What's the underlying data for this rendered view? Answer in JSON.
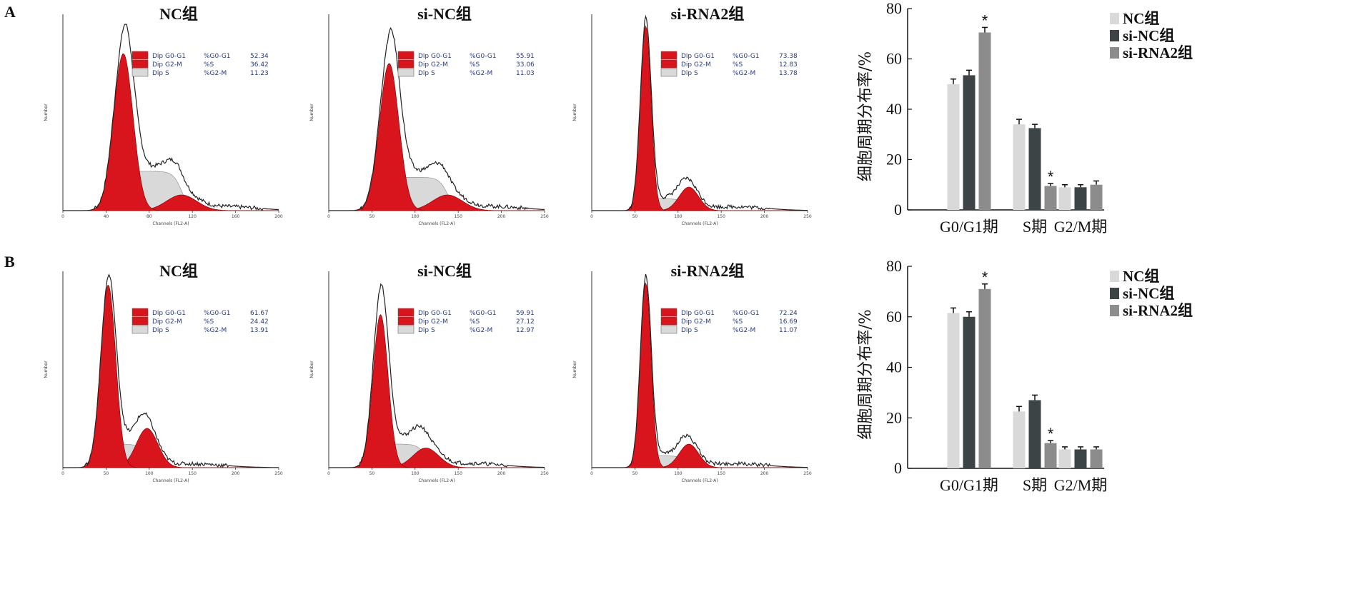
{
  "panel_labels": [
    "A",
    "B"
  ],
  "histograms": [
    {
      "title": "NC组",
      "legend": [
        {
          "label": "Dip G0-G1",
          "stat": "%G0-G1",
          "value": "52.34"
        },
        {
          "label": "Dip G2-M",
          "stat": "%S",
          "value": "36.42"
        },
        {
          "label": "Dip S",
          "stat": "%G2-M",
          "value": "11.23"
        }
      ],
      "ylabel": "Number",
      "xlabel": "Channels (FL2-A)",
      "xticks": [
        "0",
        "40",
        "80",
        "120",
        "160",
        "200"
      ],
      "shape": {
        "g1_pos": 0.28,
        "g1_h": 0.8,
        "g1_w": 0.045,
        "g1_peak_total": 0.95,
        "s_h": 0.2,
        "g2_pos": 0.55,
        "g2_h": 0.08,
        "g2_w": 0.07
      }
    },
    {
      "title": "si-NC组",
      "legend": [
        {
          "label": "Dip G0-G1",
          "stat": "%G0-G1",
          "value": "55.91"
        },
        {
          "label": "Dip G2-M",
          "stat": "%S",
          "value": "33.06"
        },
        {
          "label": "Dip S",
          "stat": "%G2-M",
          "value": "11.03"
        }
      ],
      "ylabel": "Number",
      "xlabel": "Channels (FL2-A)",
      "xticks": [
        "0",
        "50",
        "100",
        "150",
        "200",
        "250"
      ],
      "shape": {
        "g1_pos": 0.28,
        "g1_h": 0.75,
        "g1_w": 0.045,
        "g1_peak_total": 0.92,
        "s_h": 0.17,
        "g2_pos": 0.55,
        "g2_h": 0.08,
        "g2_w": 0.07
      }
    },
    {
      "title": "si-RNA2组",
      "legend": [
        {
          "label": "Dip G0-G1",
          "stat": "%G0-G1",
          "value": "73.38"
        },
        {
          "label": "Dip G2-M",
          "stat": "%S",
          "value": "12.83"
        },
        {
          "label": "Dip S",
          "stat": "%G2-M",
          "value": "13.78"
        }
      ],
      "ylabel": "Number",
      "xlabel": "Channels (FL2-A)",
      "xticks": [
        "0",
        "50",
        "100",
        "150",
        "200",
        "250"
      ],
      "shape": {
        "g1_pos": 0.25,
        "g1_h": 0.94,
        "g1_w": 0.025,
        "g1_peak_total": 0.98,
        "s_h": 0.06,
        "g2_pos": 0.45,
        "g2_h": 0.12,
        "g2_w": 0.045
      }
    },
    {
      "title": "NC组",
      "legend": [
        {
          "label": "Dip G0-G1",
          "stat": "%G0-G1",
          "value": "61.67"
        },
        {
          "label": "Dip G2-M",
          "stat": "%S",
          "value": "24.42"
        },
        {
          "label": "Dip S",
          "stat": "%G2-M",
          "value": "13.91"
        }
      ],
      "ylabel": "Number",
      "xlabel": "Channels (FL2-A)",
      "xticks": [
        "0",
        "50",
        "100",
        "150",
        "200",
        "250"
      ],
      "shape": {
        "g1_pos": 0.21,
        "g1_h": 0.93,
        "g1_w": 0.035,
        "g1_peak_total": 0.98,
        "s_h": 0.12,
        "g2_pos": 0.39,
        "g2_h": 0.2,
        "g2_w": 0.05
      }
    },
    {
      "title": "si-NC组",
      "legend": [
        {
          "label": "Dip G0-G1",
          "stat": "%G0-G1",
          "value": "59.91"
        },
        {
          "label": "Dip G2-M",
          "stat": "%S",
          "value": "27.12"
        },
        {
          "label": "Dip S",
          "stat": "%G2-M",
          "value": "12.97"
        }
      ],
      "ylabel": "Number",
      "xlabel": "Channels (FL2-A)",
      "xticks": [
        "0",
        "50",
        "100",
        "150",
        "200",
        "250"
      ],
      "shape": {
        "g1_pos": 0.24,
        "g1_h": 0.78,
        "g1_w": 0.035,
        "g1_peak_total": 0.93,
        "s_h": 0.12,
        "g2_pos": 0.45,
        "g2_h": 0.1,
        "g2_w": 0.06
      }
    },
    {
      "title": "si-RNA2组",
      "legend": [
        {
          "label": "Dip G0-G1",
          "stat": "%G0-G1",
          "value": "72.24"
        },
        {
          "label": "Dip G2-M",
          "stat": "%S",
          "value": "16.69"
        },
        {
          "label": "Dip S",
          "stat": "%G2-M",
          "value": "11.07"
        }
      ],
      "ylabel": "Number",
      "xlabel": "Channels (FL2-A)",
      "xticks": [
        "0",
        "50",
        "100",
        "150",
        "200",
        "250"
      ],
      "shape": {
        "g1_pos": 0.25,
        "g1_h": 0.94,
        "g1_w": 0.025,
        "g1_peak_total": 0.98,
        "s_h": 0.06,
        "g2_pos": 0.45,
        "g2_h": 0.12,
        "g2_w": 0.045
      }
    }
  ],
  "colors": {
    "g1_fill": "#d8141c",
    "g2_fill": "#d8141c",
    "s_fill": "#d9d9d9",
    "outline": "#222222",
    "nc_bar": "#d9d9d9",
    "sinc_bar": "#3d4446",
    "sirna_bar": "#8c8c8c",
    "legend_text": "#2a3a7a"
  },
  "chart_data": [
    {
      "type": "bar",
      "categories": [
        "G0/G1期",
        "S期",
        "G2/M期"
      ],
      "series": [
        {
          "name": "NC组",
          "values": [
            50,
            34,
            9
          ],
          "errors": [
            2,
            2,
            1
          ]
        },
        {
          "name": "si-NC组",
          "values": [
            53.5,
            32.5,
            9
          ],
          "errors": [
            2,
            1.5,
            1
          ]
        },
        {
          "name": "si-RNA2组",
          "values": [
            70.5,
            9.5,
            10
          ],
          "errors": [
            2,
            1,
            1.5
          ]
        }
      ],
      "significance": [
        {
          "category": 0,
          "series": 2,
          "mark": "*"
        },
        {
          "category": 1,
          "series": 2,
          "mark": "*"
        }
      ],
      "ylabel": "细胞周期分布率/%",
      "ylim": [
        0,
        80
      ],
      "yticks": [
        "0",
        "20",
        "40",
        "60",
        "80"
      ],
      "legend_position": "top-right"
    },
    {
      "type": "bar",
      "categories": [
        "G0/G1期",
        "S期",
        "G2/M期"
      ],
      "series": [
        {
          "name": "NC组",
          "values": [
            61.5,
            22.5,
            7.5
          ],
          "errors": [
            2,
            2,
            1
          ]
        },
        {
          "name": "si-NC组",
          "values": [
            60,
            27,
            7.5
          ],
          "errors": [
            2,
            2,
            1
          ]
        },
        {
          "name": "si-RNA2组",
          "values": [
            71,
            10,
            7.5
          ],
          "errors": [
            2,
            1,
            1
          ]
        }
      ],
      "significance": [
        {
          "category": 0,
          "series": 2,
          "mark": "*"
        },
        {
          "category": 1,
          "series": 2,
          "mark": "*"
        }
      ],
      "ylabel": "细胞周期分布率/%",
      "ylim": [
        0,
        80
      ],
      "yticks": [
        "0",
        "20",
        "40",
        "60",
        "80"
      ],
      "legend_position": "top-right"
    }
  ]
}
